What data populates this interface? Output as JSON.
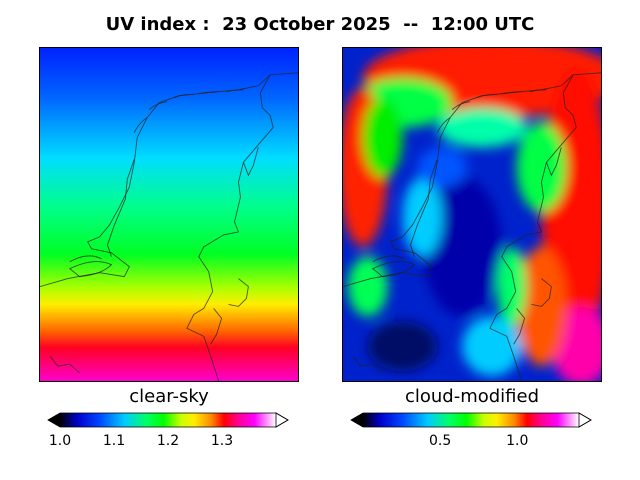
{
  "title": "UV index :  23 October 2025  --  12:00 UTC",
  "panels": [
    {
      "label": "clear-sky",
      "colorbar": {
        "ticks": [
          "1.0",
          "1.1",
          "1.2",
          "1.3"
        ],
        "min": 1.0,
        "max": 1.4,
        "tick_values": [
          1.0,
          1.1,
          1.2,
          1.3
        ]
      }
    },
    {
      "label": "cloud-modified",
      "colorbar": {
        "ticks": [
          "0.5",
          "1.0"
        ],
        "min": 0.0,
        "max": 1.4,
        "tick_values": [
          0.5,
          1.0
        ]
      }
    }
  ],
  "colormap": [
    "#000000",
    "#0000cc",
    "#0044ff",
    "#00ccff",
    "#00ff66",
    "#00ff00",
    "#ccff00",
    "#ffee00",
    "#ff8800",
    "#ff0000",
    "#ff0088",
    "#ff00ff",
    "#ffffff"
  ]
}
